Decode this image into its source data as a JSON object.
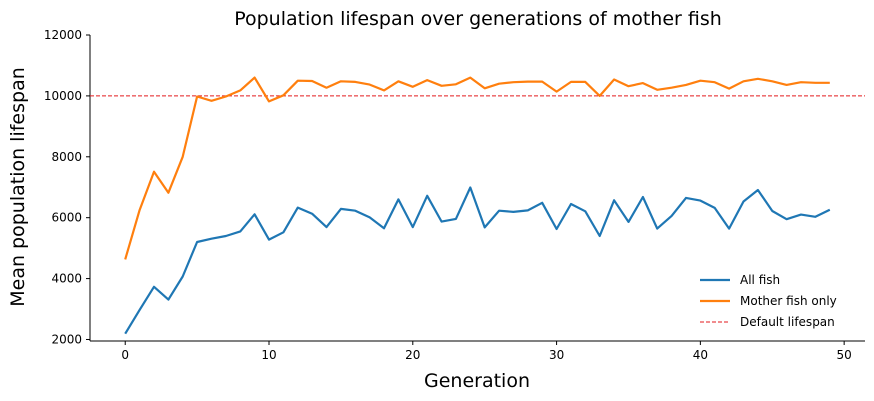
{
  "chart_data": {
    "type": "line",
    "title": "Population lifespan over generations of mother fish",
    "xlabel": "Generation",
    "ylabel": "Mean population lifespan",
    "xlim": [
      -2.45,
      51.45
    ],
    "ylim": [
      1950,
      12000
    ],
    "xticks": [
      0,
      10,
      20,
      30,
      40,
      50
    ],
    "yticks": [
      2000,
      4000,
      6000,
      8000,
      10000,
      12000
    ],
    "grid": false,
    "legend_position": "lower-right",
    "x": [
      0,
      1,
      2,
      3,
      4,
      5,
      6,
      7,
      8,
      9,
      10,
      11,
      12,
      13,
      14,
      15,
      16,
      17,
      18,
      19,
      20,
      21,
      22,
      23,
      24,
      25,
      26,
      27,
      28,
      29,
      30,
      31,
      32,
      33,
      34,
      35,
      36,
      37,
      38,
      39,
      40,
      41,
      42,
      43,
      44,
      45,
      46,
      47,
      48,
      49
    ],
    "series": [
      {
        "name": "All fish",
        "color": "#1f77b4",
        "values": [
          2190,
          2970,
          3730,
          3310,
          4070,
          5200,
          5310,
          5400,
          5550,
          6110,
          5280,
          5520,
          6330,
          6130,
          5690,
          6290,
          6230,
          6010,
          5650,
          6600,
          5690,
          6720,
          5870,
          5960,
          6990,
          5680,
          6230,
          6190,
          6240,
          6490,
          5630,
          6450,
          6210,
          5400,
          6570,
          5860,
          6680,
          5640,
          6060,
          6650,
          6560,
          6320,
          5640,
          6530,
          6910,
          6220,
          5950,
          6100,
          6030,
          6260
        ]
      },
      {
        "name": "Mother fish only",
        "color": "#ff7f0e",
        "values": [
          4630,
          6250,
          7510,
          6820,
          8000,
          9980,
          9840,
          9980,
          10180,
          10600,
          9820,
          10020,
          10500,
          10490,
          10270,
          10480,
          10460,
          10370,
          10180,
          10480,
          10300,
          10520,
          10330,
          10380,
          10600,
          10250,
          10400,
          10450,
          10470,
          10470,
          10140,
          10460,
          10460,
          10000,
          10540,
          10320,
          10420,
          10200,
          10270,
          10360,
          10500,
          10450,
          10240,
          10480,
          10560,
          10480,
          10360,
          10450,
          10430,
          10430
        ]
      }
    ],
    "reference_lines": [
      {
        "name": "Default lifespan",
        "y": 10000,
        "color": "#e31a1c",
        "style": "dashed"
      }
    ]
  }
}
